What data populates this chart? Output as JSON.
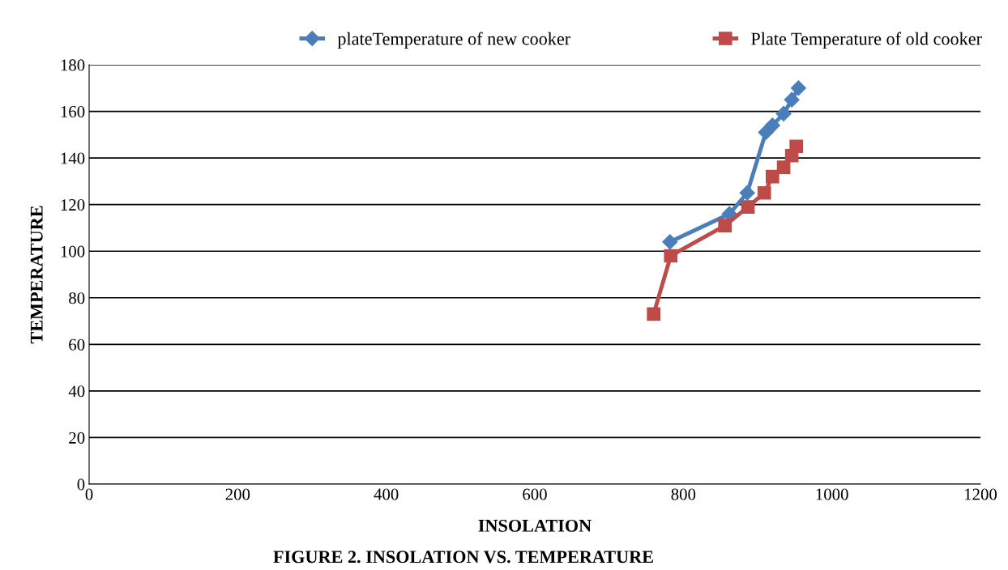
{
  "chart_data": {
    "type": "line",
    "title": "FIGURE 2. INSOLATION VS. TEMPERATURE",
    "xlabel": "INSOLATION",
    "ylabel": "TEMPERATURE",
    "series": [
      {
        "name": "plateTemperature of new cooker",
        "color": "#4a7ebb",
        "marker": "diamond",
        "x": [
          782,
          862,
          886,
          911,
          920,
          935,
          946,
          955
        ],
        "values": [
          104,
          116,
          125,
          151,
          154,
          159,
          165,
          170
        ]
      },
      {
        "name": "Plate Temperature of old cooker",
        "color": "#be4b48",
        "marker": "square",
        "x": [
          760,
          783,
          856,
          887,
          909,
          920,
          935,
          946,
          952
        ],
        "values": [
          73,
          98,
          111,
          119,
          125,
          132,
          136,
          141,
          145
        ]
      }
    ],
    "xlim": [
      0,
      1200
    ],
    "xticks": [
      0,
      200,
      400,
      600,
      800,
      1000,
      1200
    ],
    "ylim": [
      0,
      180
    ],
    "yticks": [
      0,
      20,
      40,
      60,
      80,
      100,
      120,
      140,
      160,
      180
    ],
    "grid": "y",
    "legend": "top right"
  }
}
